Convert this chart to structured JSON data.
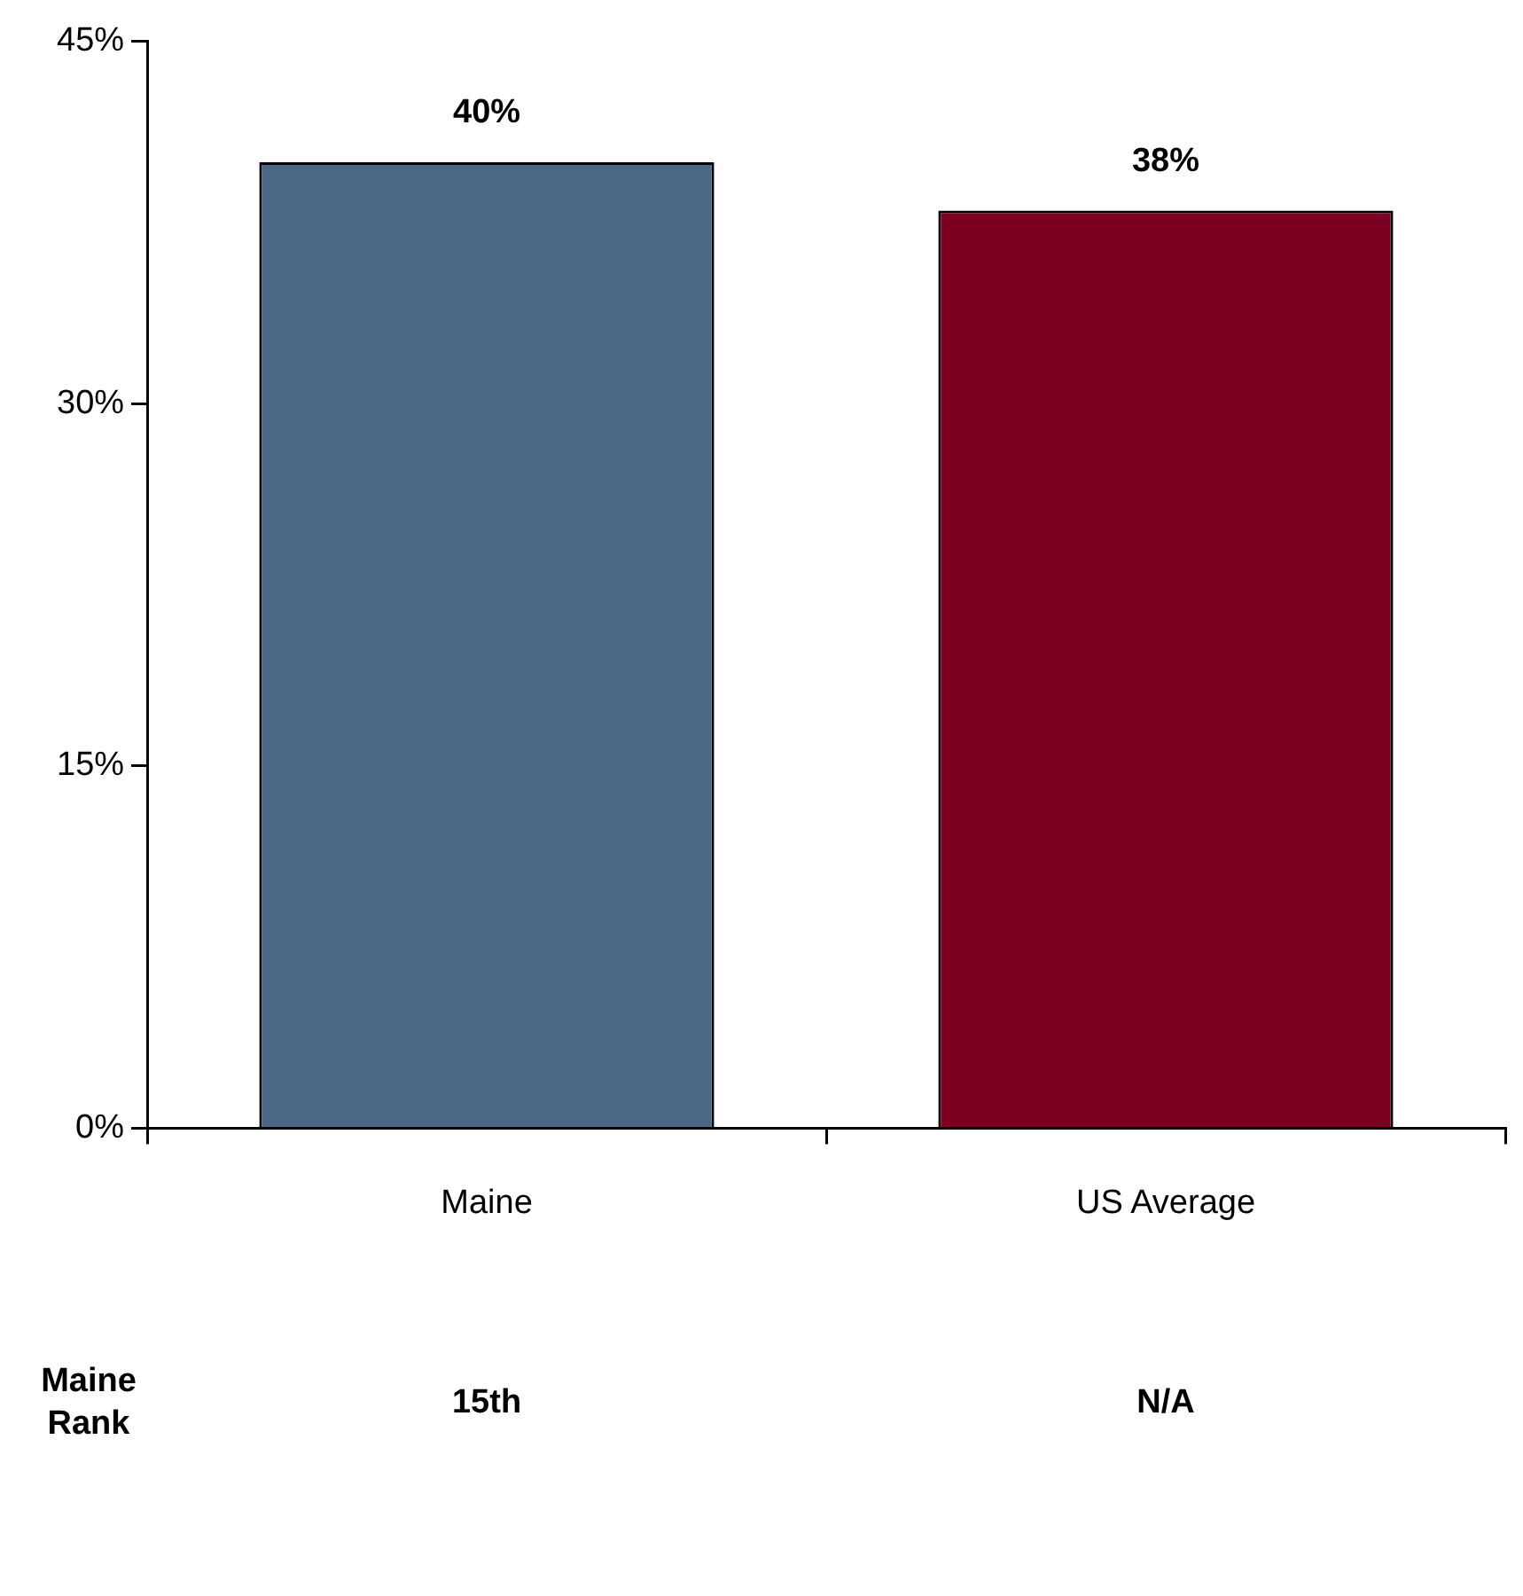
{
  "chart_data": {
    "type": "bar",
    "categories": [
      "Maine",
      "US Average"
    ],
    "values": [
      40,
      38
    ],
    "colors": [
      "#4a6785",
      "#7d0023"
    ],
    "value_labels": [
      "40%",
      "38%"
    ],
    "ylim": [
      0,
      45
    ],
    "yticks": [
      {
        "value": 0,
        "label": "0%"
      },
      {
        "value": 15,
        "label": "15%"
      },
      {
        "value": 30,
        "label": "30%"
      },
      {
        "value": 45,
        "label": "45%"
      }
    ],
    "grid": false,
    "legend": false,
    "annotations": [
      "Maine Rank",
      "15th",
      "N/A"
    ]
  }
}
